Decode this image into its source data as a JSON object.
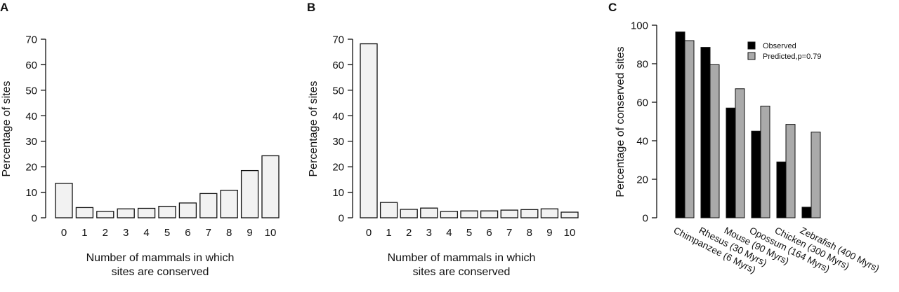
{
  "chart_data": [
    {
      "panel_label": "A",
      "type": "bar",
      "categories": [
        "0",
        "1",
        "2",
        "3",
        "4",
        "5",
        "6",
        "7",
        "8",
        "9",
        "10"
      ],
      "values": [
        13.5,
        4,
        2.5,
        3.5,
        3.7,
        4.5,
        5.8,
        9.5,
        10.8,
        18.5,
        24.3
      ],
      "xlabel": "Number of mammals in which sites are conserved",
      "xlabel_lines": [
        "Number of mammals in which",
        "sites are conserved"
      ],
      "ylabel": "Percentage of sites",
      "ylim": [
        0,
        70
      ],
      "yticks": [
        "0",
        "10",
        "20",
        "30",
        "40",
        "50",
        "60",
        "70"
      ],
      "bar_color": "#f2f2f2",
      "grid": false
    },
    {
      "panel_label": "B",
      "type": "bar",
      "categories": [
        "0",
        "1",
        "2",
        "3",
        "4",
        "5",
        "6",
        "7",
        "8",
        "9",
        "10"
      ],
      "values": [
        68.2,
        6,
        3.3,
        3.8,
        2.5,
        2.7,
        2.7,
        3,
        3.2,
        3.5,
        2.2
      ],
      "xlabel": "Number of mammals in which sites are conserved",
      "xlabel_lines": [
        "Number of mammals in which",
        "sites are conserved"
      ],
      "ylabel": "Percentage of sites",
      "ylim": [
        0,
        70
      ],
      "yticks": [
        "0",
        "10",
        "20",
        "30",
        "40",
        "50",
        "60",
        "70"
      ],
      "bar_color": "#f2f2f2",
      "grid": false
    },
    {
      "panel_label": "C",
      "type": "bar",
      "categories": [
        "Chimpanzee (6 Myrs)",
        "Rhesus (30 Myrs)",
        "Mouse (90 Myrs)",
        "Opossum (164 Myrs)",
        "Chicken (300 Myrs)",
        "Zebrafish (400 Myrs)"
      ],
      "series": [
        {
          "name": "Observed",
          "color": "#000000",
          "values": [
            96.5,
            88.5,
            57,
            45,
            29,
            5.5
          ]
        },
        {
          "name": "Predicted,p=0.79",
          "color": "#aaaaaa",
          "values": [
            92,
            79.5,
            67,
            58,
            48.5,
            44.5
          ]
        }
      ],
      "ylabel": "Percentage of conserved sites",
      "ylim": [
        0,
        100
      ],
      "yticks": [
        "0",
        "20",
        "40",
        "60",
        "80",
        "100"
      ],
      "legend_position": "top-right",
      "grid": false
    }
  ]
}
